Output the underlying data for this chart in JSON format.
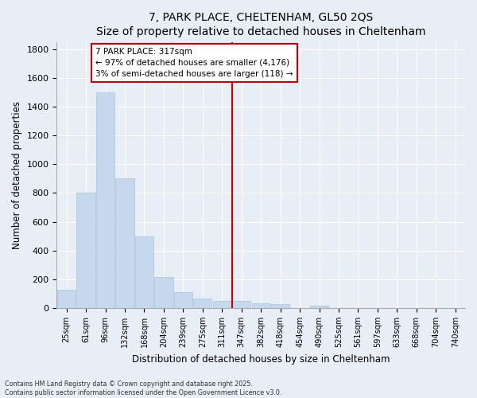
{
  "title": "7, PARK PLACE, CHELTENHAM, GL50 2QS",
  "subtitle": "Size of property relative to detached houses in Cheltenham",
  "xlabel": "Distribution of detached houses by size in Cheltenham",
  "ylabel": "Number of detached properties",
  "footnote1": "Contains HM Land Registry data © Crown copyright and database right 2025.",
  "footnote2": "Contains public sector information licensed under the Open Government Licence v3.0.",
  "annotation_line1": "7 PARK PLACE: 317sqm",
  "annotation_line2": "← 97% of detached houses are smaller (4,176)",
  "annotation_line3": "3% of semi-detached houses are larger (118) →",
  "bar_color": "#c5d8ec",
  "bar_edge_color": "#a8c4e0",
  "line_color": "#cc0000",
  "annotation_box_color": "#ffffff",
  "annotation_box_edge": "#cc0000",
  "background_color": "#e8eef5",
  "grid_color": "#ffffff",
  "categories": [
    "25sqm",
    "61sqm",
    "96sqm",
    "132sqm",
    "168sqm",
    "204sqm",
    "239sqm",
    "275sqm",
    "311sqm",
    "347sqm",
    "382sqm",
    "418sqm",
    "454sqm",
    "490sqm",
    "525sqm",
    "561sqm",
    "597sqm",
    "633sqm",
    "668sqm",
    "704sqm",
    "740sqm"
  ],
  "values": [
    125,
    800,
    1500,
    900,
    500,
    215,
    110,
    65,
    50,
    50,
    35,
    25,
    0,
    15,
    0,
    0,
    0,
    0,
    0,
    0,
    0
  ],
  "ylim": [
    0,
    1850
  ],
  "yticks": [
    0,
    200,
    400,
    600,
    800,
    1000,
    1200,
    1400,
    1600,
    1800
  ],
  "marker_index": 8.5,
  "figsize": [
    6.0,
    5.0
  ],
  "dpi": 100
}
